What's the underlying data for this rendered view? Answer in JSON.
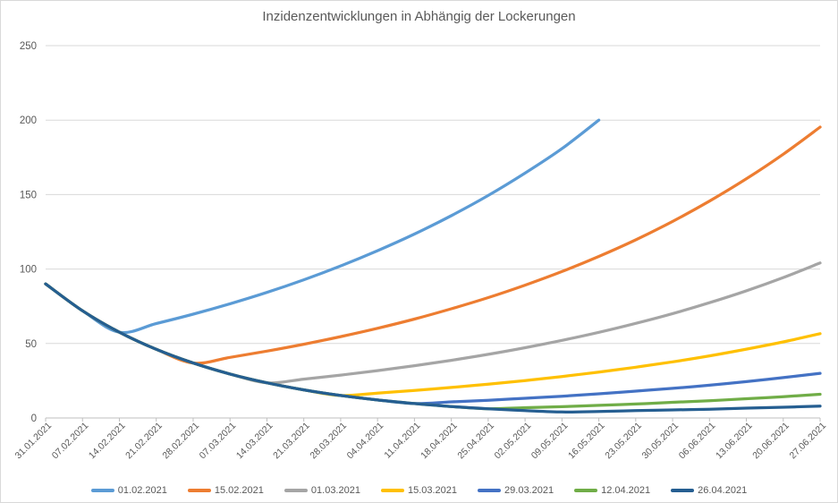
{
  "chart_data": {
    "type": "line",
    "title": "Inzidenzentwicklungen in Abhängig der Lockerungen",
    "title_color": "#595959",
    "xlabel": "",
    "ylabel": "",
    "ylim": [
      0,
      250
    ],
    "y_ticks": [
      0,
      50,
      100,
      150,
      200,
      250
    ],
    "grid": "horizontal",
    "gridline_color": "#D9D9D9",
    "axis_line_color": "#BFBFBF",
    "axis_label_color": "#595959",
    "x_label_rotation": -45,
    "legend_position": "bottom",
    "line_smoothing": true,
    "x_tick_labels": [
      "31.01.2021",
      "07.02.2021",
      "14.02.2021",
      "21.02.2021",
      "28.02.2021",
      "07.03.2021",
      "14.03.2021",
      "21.03.2021",
      "28.03.2021",
      "04.04.2021",
      "11.04.2021",
      "18.04.2021",
      "25.04.2021",
      "02.05.2021",
      "09.05.2021",
      "16.05.2021",
      "23.05.2021",
      "30.05.2021",
      "06.06.2021",
      "13.06.2021",
      "20.06.2021",
      "27.06.2021"
    ],
    "series": [
      {
        "name": "01.02.2021",
        "color": "#5B9BD5",
        "values": [
          90,
          72,
          57.6,
          63.4,
          69.7,
          76.7,
          84.3,
          92.8,
          102.1,
          112.3,
          123.5,
          135.8,
          149.4,
          164.4,
          180.8,
          200,
          null,
          null,
          null,
          null,
          null,
          null
        ]
      },
      {
        "name": "15.02.2021",
        "color": "#ED7D31",
        "values": [
          90,
          72,
          57.6,
          46.1,
          36.9,
          40.7,
          44.9,
          49.5,
          54.6,
          60.2,
          66.4,
          73.3,
          80.8,
          89.2,
          98.3,
          108.5,
          119.6,
          132,
          145.6,
          160.6,
          177.1,
          195.3
        ]
      },
      {
        "name": "01.03.2021",
        "color": "#A5A5A5",
        "values": [
          90,
          72,
          57.6,
          46.1,
          36.9,
          29.5,
          23.6,
          26.1,
          28.8,
          31.8,
          35.1,
          38.7,
          42.7,
          47.2,
          52.1,
          57.5,
          63.5,
          70.1,
          77.4,
          85.4,
          94.3,
          104.1
        ]
      },
      {
        "name": "15.03.2021",
        "color": "#FFC000",
        "values": [
          90,
          72,
          57.6,
          46.1,
          36.9,
          29.5,
          23.6,
          18.9,
          15.1,
          16.7,
          18.5,
          20.5,
          22.7,
          25.1,
          27.8,
          30.8,
          34.1,
          37.7,
          41.7,
          46.2,
          51.1,
          56.6
        ]
      },
      {
        "name": "29.03.2021",
        "color": "#4472C4",
        "values": [
          90,
          72,
          57.6,
          46.1,
          36.9,
          29.5,
          23.6,
          18.9,
          15.1,
          12.1,
          9.7,
          10.8,
          11.9,
          13.2,
          14.6,
          16.2,
          18,
          19.9,
          22,
          24.4,
          27.1,
          30
        ]
      },
      {
        "name": "12.04.2021",
        "color": "#70AD47",
        "values": [
          90,
          72,
          57.6,
          46.1,
          36.9,
          29.5,
          23.6,
          18.9,
          15.1,
          12.1,
          9.7,
          7.7,
          6.2,
          6.9,
          7.6,
          8.5,
          9.4,
          10.5,
          11.6,
          12.9,
          14.3,
          15.9
        ]
      },
      {
        "name": "26.04.2021",
        "color": "#255E91",
        "values": [
          90,
          72,
          57.6,
          46.1,
          36.9,
          29.5,
          23.6,
          18.9,
          15.1,
          12.1,
          9.7,
          7.7,
          6.2,
          5,
          4,
          4.4,
          4.9,
          5.4,
          5.9,
          6.6,
          7.2,
          8
        ]
      }
    ]
  }
}
